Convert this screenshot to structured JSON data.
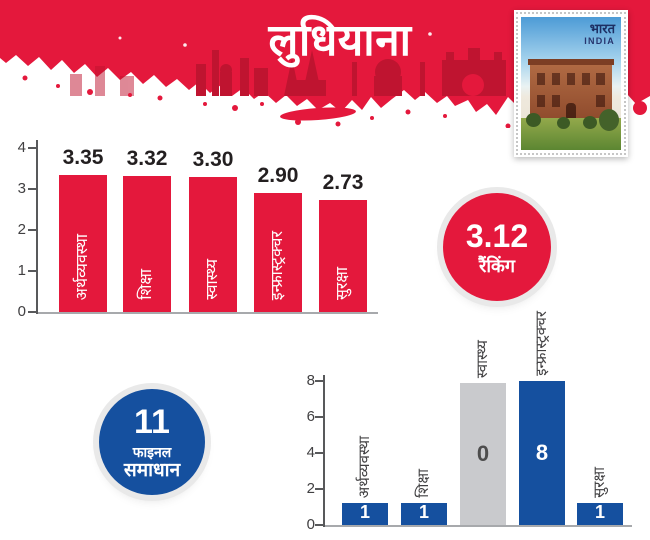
{
  "page": {
    "title": "लुधियाना"
  },
  "stamp": {
    "country_hi": "भारत",
    "country_en": "INDIA"
  },
  "rank_badge": {
    "value": "3.12",
    "label": "रैंकिंग"
  },
  "final_badge": {
    "value": "11",
    "label_line1": "फाइनल",
    "label_line2": "समाधान"
  },
  "colors": {
    "banner_red": "#e4183c",
    "skyline_dark_red": "#bf1430",
    "bar_red": "#e4183c",
    "bar_blue": "#15509f",
    "bar_gray": "#c9cacd",
    "axis": "#58595b",
    "baseline": "#a7a9ac",
    "value_text_dark": "#231f20",
    "tick_text": "#414042"
  },
  "chart_data": [
    {
      "id": "scores",
      "type": "bar",
      "title": "",
      "categories": [
        "अर्थव्यवस्था",
        "शिक्षा",
        "स्वास्थ्य",
        "इन्फ्रास्ट्रक्चर",
        "सुरक्षा"
      ],
      "values": [
        3.35,
        3.32,
        3.3,
        2.9,
        2.73
      ],
      "value_labels": [
        "3.35",
        "3.32",
        "3.30",
        "2.90",
        "2.73"
      ],
      "ylim": [
        0,
        4
      ],
      "yticks": [
        0,
        1,
        2,
        3,
        4
      ],
      "bar_color": "#e4183c",
      "value_label_color": "#231f20",
      "category_label_color": "#ffffff",
      "grid": false,
      "legend": "none"
    },
    {
      "id": "solutions",
      "type": "bar",
      "title": "",
      "categories": [
        "अर्थव्यवस्था",
        "शिक्षा",
        "स्वास्थ्य",
        "इन्फ्रास्ट्रक्चर",
        "सुरक्षा"
      ],
      "values": [
        1,
        1,
        0,
        8,
        1
      ],
      "value_labels": [
        "1",
        "1",
        "0",
        "8",
        "1"
      ],
      "display_heights": [
        1.2,
        1.2,
        7.9,
        8,
        1.2
      ],
      "bar_colors": [
        "#15509f",
        "#15509f",
        "#c9cacd",
        "#15509f",
        "#15509f"
      ],
      "value_label_colors": [
        "#ffffff",
        "#ffffff",
        "#4d4d4d",
        "#ffffff",
        "#ffffff"
      ],
      "value_label_pos": [
        "bottom",
        "bottom",
        "middle",
        "middle",
        "bottom"
      ],
      "ylim": [
        0,
        8
      ],
      "yticks": [
        0,
        2,
        4,
        6,
        8
      ],
      "category_label_color": "#414042",
      "grid": false,
      "legend": "none"
    }
  ]
}
